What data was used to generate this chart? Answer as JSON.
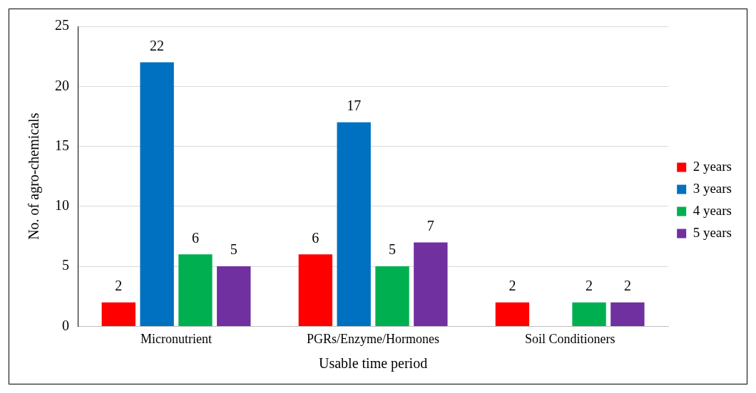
{
  "chart_data": {
    "type": "bar",
    "xlabel": "Usable time period",
    "ylabel": "No. of agro-chemicals",
    "categories": [
      "Micronutrient",
      "PGRs/Enzyme/Hormones",
      "Soil Conditioners"
    ],
    "series": [
      {
        "name": "2 years",
        "color": "#ff0000",
        "values": [
          2,
          6,
          2
        ]
      },
      {
        "name": "3 years",
        "color": "#0070c0",
        "values": [
          22,
          17,
          null
        ]
      },
      {
        "name": "4 years",
        "color": "#00b050",
        "values": [
          6,
          5,
          2
        ]
      },
      {
        "name": "5 years",
        "color": "#7030a0",
        "values": [
          5,
          7,
          2
        ]
      }
    ],
    "ylim": [
      0,
      25
    ],
    "yticks": [
      0,
      5,
      10,
      15,
      20,
      25
    ],
    "grid": "y",
    "legend": "right",
    "data_labels": true
  }
}
